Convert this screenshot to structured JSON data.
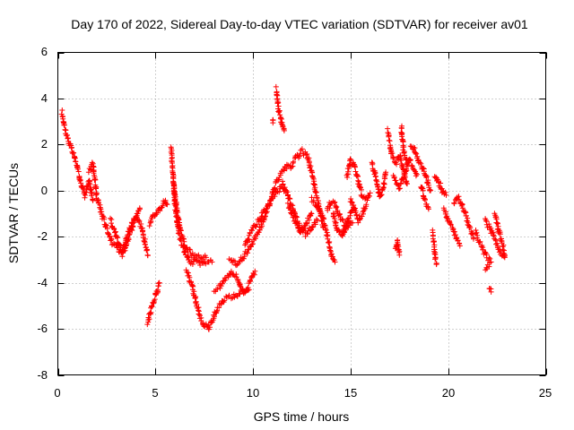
{
  "chart_data": {
    "type": "scatter",
    "title": "Day 170 of 2022, Sidereal Day-to-day VTEC variation (SDTVAR) for receiver av01",
    "xlabel": "GPS time / hours",
    "ylabel": "SDTVAR / TECUs",
    "xlim": [
      0,
      25
    ],
    "ylim": [
      -8,
      6
    ],
    "xticks": [
      "0",
      "5",
      "10",
      "15",
      "20",
      "25"
    ],
    "yticks": [
      "-8",
      "-6",
      "-4",
      "-2",
      "0",
      "2",
      "4",
      "6"
    ],
    "grid": true,
    "marker": "plus",
    "color": "#ff0000",
    "series": [
      {
        "name": "SDTVAR",
        "segments": [
          [
            [
              0.2,
              3.4
            ],
            [
              0.4,
              2.6
            ],
            [
              0.6,
              2.0
            ],
            [
              0.8,
              1.6
            ],
            [
              1.0,
              1.0
            ],
            [
              1.2,
              0.3
            ],
            [
              1.4,
              -0.2
            ],
            [
              1.6,
              0.4
            ],
            [
              1.8,
              -0.4
            ]
          ],
          [
            [
              1.6,
              0.8
            ],
            [
              1.8,
              1.2
            ],
            [
              2.0,
              -0.3
            ],
            [
              2.2,
              -0.8
            ]
          ],
          [
            [
              2.2,
              -0.9
            ],
            [
              2.5,
              -1.6
            ],
            [
              2.8,
              -2.3
            ],
            [
              3.1,
              -2.6
            ],
            [
              3.4,
              -2.4
            ],
            [
              3.7,
              -1.6
            ],
            [
              4.0,
              -1.1
            ],
            [
              4.3,
              -1.6
            ],
            [
              4.6,
              -2.8
            ]
          ],
          [
            [
              2.7,
              -1.3
            ],
            [
              3.0,
              -2.0
            ],
            [
              3.3,
              -2.8
            ],
            [
              3.6,
              -2.1
            ],
            [
              3.9,
              -1.4
            ],
            [
              4.2,
              -0.8
            ]
          ],
          [
            [
              4.6,
              -5.7
            ],
            [
              4.8,
              -5.1
            ],
            [
              5.0,
              -4.6
            ],
            [
              5.2,
              -4.0
            ]
          ],
          [
            [
              4.7,
              -1.5
            ],
            [
              4.9,
              -1.1
            ],
            [
              5.1,
              -0.9
            ],
            [
              5.3,
              -0.7
            ],
            [
              5.5,
              -0.4
            ],
            [
              5.6,
              -0.6
            ]
          ],
          [
            [
              5.8,
              1.8
            ],
            [
              5.9,
              0.8
            ],
            [
              6.0,
              -0.6
            ],
            [
              6.2,
              -1.9
            ],
            [
              6.5,
              -2.7
            ],
            [
              6.8,
              -3.2
            ],
            [
              7.1,
              -3.0
            ],
            [
              7.4,
              -3.2
            ],
            [
              7.7,
              -3.0
            ],
            [
              7.9,
              -3.1
            ]
          ],
          [
            [
              5.9,
              0.4
            ],
            [
              6.1,
              -0.8
            ],
            [
              6.3,
              -1.8
            ],
            [
              6.6,
              -2.5
            ],
            [
              6.9,
              -2.8
            ],
            [
              7.2,
              -2.9
            ],
            [
              7.6,
              -2.9
            ]
          ],
          [
            [
              6.6,
              -3.5
            ],
            [
              6.9,
              -4.2
            ],
            [
              7.1,
              -4.9
            ],
            [
              7.3,
              -5.5
            ],
            [
              7.5,
              -5.8
            ],
            [
              7.7,
              -6.0
            ],
            [
              7.9,
              -5.6
            ],
            [
              8.2,
              -5.1
            ],
            [
              8.6,
              -4.7
            ],
            [
              9.0,
              -4.6
            ],
            [
              9.4,
              -4.4
            ],
            [
              9.8,
              -4.3
            ]
          ],
          [
            [
              8.0,
              -4.3
            ],
            [
              8.3,
              -4.2
            ],
            [
              8.6,
              -3.8
            ],
            [
              8.9,
              -3.5
            ],
            [
              9.2,
              -3.8
            ],
            [
              9.5,
              -4.4
            ],
            [
              9.8,
              -4.1
            ],
            [
              10.1,
              -3.5
            ]
          ],
          [
            [
              8.8,
              -3.0
            ],
            [
              9.1,
              -3.2
            ],
            [
              9.4,
              -3.0
            ],
            [
              9.7,
              -2.6
            ],
            [
              10.0,
              -2.2
            ],
            [
              10.3,
              -1.8
            ],
            [
              10.6,
              -1.1
            ],
            [
              10.9,
              -0.4
            ],
            [
              11.2,
              0.4
            ],
            [
              11.5,
              0.8
            ],
            [
              11.8,
              1.1
            ]
          ],
          [
            [
              9.6,
              -2.4
            ],
            [
              9.9,
              -1.8
            ],
            [
              10.2,
              -1.4
            ],
            [
              10.5,
              -1.0
            ],
            [
              10.8,
              -0.6
            ],
            [
              11.1,
              -0.2
            ],
            [
              11.4,
              0.1
            ],
            [
              11.7,
              0.0
            ]
          ],
          [
            [
              11.2,
              4.4
            ],
            [
              11.3,
              3.6
            ],
            [
              11.5,
              2.9
            ],
            [
              11.6,
              2.6
            ]
          ],
          [
            [
              11.0,
              3.0
            ]
          ],
          [
            [
              11.5,
              0.3
            ],
            [
              11.8,
              -0.2
            ],
            [
              12.1,
              -0.9
            ],
            [
              12.4,
              -1.6
            ],
            [
              12.7,
              -1.9
            ],
            [
              13.0,
              -1.6
            ],
            [
              13.3,
              -1.3
            ]
          ],
          [
            [
              11.8,
              -0.6
            ],
            [
              12.1,
              -1.2
            ],
            [
              12.4,
              -1.8
            ],
            [
              12.7,
              -1.5
            ],
            [
              13.0,
              -1.0
            ]
          ],
          [
            [
              11.9,
              1.0
            ],
            [
              12.2,
              1.4
            ],
            [
              12.5,
              1.7
            ],
            [
              12.8,
              1.5
            ],
            [
              13.0,
              0.8
            ],
            [
              13.2,
              0.0
            ],
            [
              13.4,
              -0.8
            ],
            [
              13.6,
              -1.6
            ]
          ],
          [
            [
              13.0,
              -0.4
            ],
            [
              13.3,
              -0.7
            ],
            [
              13.6,
              -1.2
            ],
            [
              13.8,
              -1.9
            ],
            [
              14.0,
              -2.8
            ],
            [
              14.2,
              -3.1
            ]
          ],
          [
            [
              13.8,
              -0.8
            ],
            [
              14.0,
              -0.5
            ],
            [
              14.2,
              -0.6
            ],
            [
              14.5,
              -1.2
            ],
            [
              14.8,
              -1.6
            ],
            [
              15.1,
              -1.4
            ]
          ],
          [
            [
              14.1,
              -0.9
            ],
            [
              14.3,
              -1.7
            ],
            [
              14.5,
              -1.9
            ],
            [
              14.7,
              -1.7
            ],
            [
              14.9,
              -1.2
            ]
          ],
          [
            [
              14.8,
              0.6
            ],
            [
              15.0,
              1.3
            ],
            [
              15.2,
              1.1
            ],
            [
              15.4,
              0.4
            ],
            [
              15.6,
              -0.2
            ],
            [
              15.8,
              -0.4
            ],
            [
              16.0,
              -0.1
            ]
          ],
          [
            [
              15.0,
              -0.4
            ],
            [
              15.2,
              -0.8
            ],
            [
              15.4,
              -1.3
            ],
            [
              15.6,
              -1.0
            ],
            [
              15.8,
              -0.6
            ]
          ],
          [
            [
              14.6,
              -2.0
            ],
            [
              14.8,
              -1.5
            ],
            [
              15.0,
              -1.0
            ],
            [
              15.2,
              -0.8
            ]
          ],
          [
            [
              16.1,
              1.2
            ],
            [
              16.3,
              0.6
            ],
            [
              16.5,
              -0.3
            ],
            [
              16.7,
              0.2
            ],
            [
              16.8,
              0.8
            ]
          ],
          [
            [
              16.9,
              2.6
            ],
            [
              17.1,
              1.6
            ],
            [
              17.3,
              1.2
            ],
            [
              17.5,
              1.5
            ],
            [
              17.7,
              0.9
            ],
            [
              17.9,
              0.3
            ]
          ],
          [
            [
              17.2,
              0.6
            ],
            [
              17.5,
              0.1
            ],
            [
              17.8,
              0.8
            ],
            [
              18.0,
              1.4
            ],
            [
              18.2,
              1.0
            ],
            [
              18.4,
              0.7
            ]
          ],
          [
            [
              17.6,
              2.8
            ],
            [
              17.7,
              1.8
            ],
            [
              17.9,
              1.2
            ]
          ],
          [
            [
              17.3,
              -2.5
            ],
            [
              17.4,
              -2.2
            ],
            [
              17.5,
              -2.8
            ]
          ],
          [
            [
              18.1,
              2.0
            ],
            [
              18.3,
              1.7
            ],
            [
              18.5,
              1.2
            ],
            [
              18.7,
              1.0
            ],
            [
              18.9,
              0.5
            ],
            [
              19.1,
              0.0
            ]
          ],
          [
            [
              18.6,
              0.2
            ],
            [
              18.8,
              -0.4
            ],
            [
              19.0,
              -0.8
            ]
          ],
          [
            [
              19.2,
              -1.8
            ],
            [
              19.3,
              -2.6
            ],
            [
              19.4,
              -3.2
            ]
          ],
          [
            [
              19.3,
              0.7
            ],
            [
              19.5,
              0.4
            ],
            [
              19.7,
              0.0
            ],
            [
              19.9,
              -0.2
            ]
          ],
          [
            [
              19.8,
              -0.8
            ],
            [
              20.0,
              -1.3
            ],
            [
              20.2,
              -1.6
            ],
            [
              20.4,
              -2.0
            ],
            [
              20.6,
              -2.4
            ]
          ],
          [
            [
              20.3,
              -0.6
            ],
            [
              20.5,
              -0.3
            ],
            [
              20.7,
              -0.6
            ],
            [
              20.9,
              -1.1
            ],
            [
              21.1,
              -1.6
            ],
            [
              21.3,
              -2.1
            ]
          ],
          [
            [
              21.4,
              -1.8
            ],
            [
              21.6,
              -2.2
            ],
            [
              21.8,
              -2.6
            ],
            [
              22.0,
              -2.9
            ],
            [
              22.2,
              -3.1
            ]
          ],
          [
            [
              21.9,
              -1.3
            ],
            [
              22.1,
              -1.6
            ],
            [
              22.3,
              -1.9
            ],
            [
              22.5,
              -2.3
            ],
            [
              22.7,
              -2.7
            ],
            [
              22.9,
              -2.9
            ]
          ],
          [
            [
              22.4,
              -1.0
            ],
            [
              22.5,
              -1.4
            ],
            [
              22.6,
              -1.8
            ],
            [
              22.8,
              -2.4
            ],
            [
              22.9,
              -2.8
            ]
          ],
          [
            [
              22.1,
              -4.2
            ],
            [
              22.2,
              -4.4
            ]
          ],
          [
            [
              21.9,
              -3.4
            ],
            [
              22.1,
              -3.3
            ]
          ]
        ]
      }
    ]
  }
}
